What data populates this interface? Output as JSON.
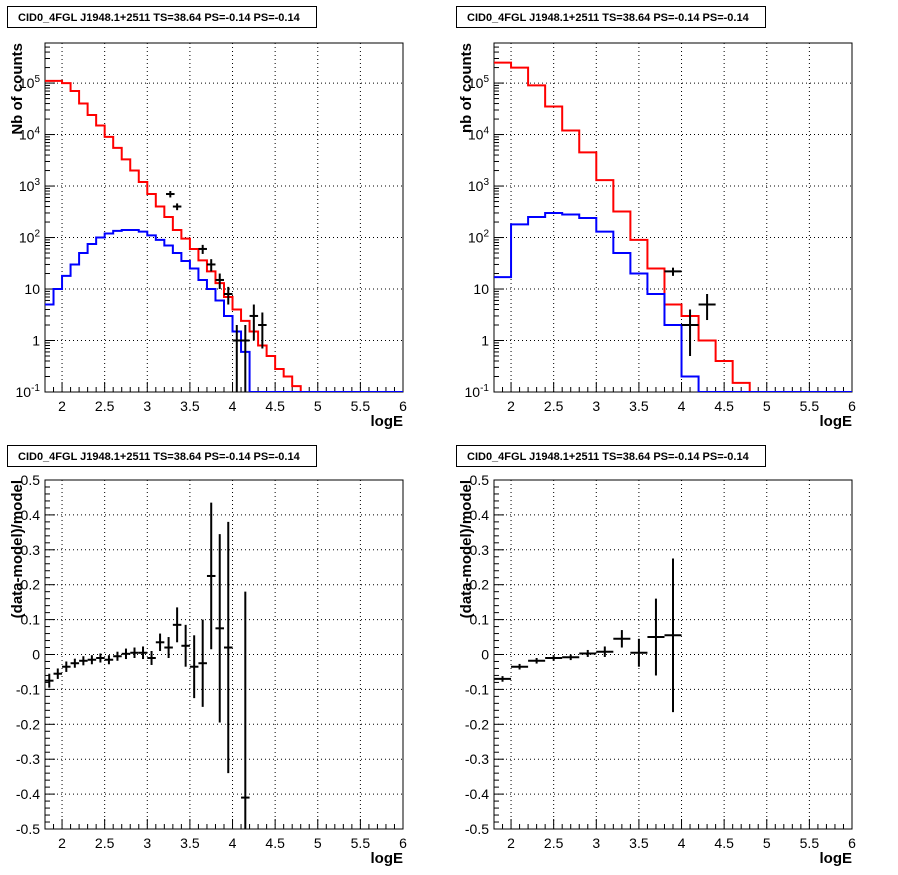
{
  "chart_data": [
    {
      "type": "histogram",
      "title": "CID0_4FGL J1948.1+2511 TS=38.64 PS=-0.14 PS=-0.14",
      "xlabel": "logE",
      "ylabel": "Nb of counts",
      "yscale": "log",
      "xlim": [
        1.8,
        6.0
      ],
      "ylim": [
        0.1,
        600000
      ],
      "grid": true,
      "xticks": [
        "2",
        "2.5",
        "3",
        "3.5",
        "4",
        "4.5",
        "5",
        "5.5",
        "6"
      ],
      "yticks": [
        "10^-1",
        "1",
        "10",
        "10^2",
        "10^3",
        "10^4",
        "10^5"
      ],
      "bin_edges": [
        1.8,
        1.9,
        2.0,
        2.1,
        2.2,
        2.3,
        2.4,
        2.5,
        2.6,
        2.7,
        2.8,
        2.9,
        3.0,
        3.1,
        3.2,
        3.3,
        3.4,
        3.5,
        3.6,
        3.7,
        3.8,
        3.9,
        4.0,
        4.1,
        4.2,
        4.3,
        4.4,
        4.5,
        4.6,
        4.7,
        4.8,
        4.9,
        5.0,
        5.1,
        5.2,
        5.3,
        5.4,
        5.5,
        5.6,
        5.7,
        5.8,
        5.9,
        6.0
      ],
      "series": [
        {
          "name": "",
          "color": "#ff0000",
          "values": [
            110000,
            110000,
            100000,
            70000,
            40000,
            24000,
            15000,
            9000,
            5500,
            3300,
            2000,
            1200,
            700,
            400,
            250,
            140,
            95,
            60,
            36,
            22,
            13,
            7,
            4,
            2.4,
            1.5,
            0.8,
            0.5,
            0.28,
            0.2,
            0.13,
            0.1,
            0.1,
            0.1,
            0.1,
            0.1,
            0.1,
            0.1,
            0.1,
            0.1,
            0.1,
            0.1,
            0.1
          ]
        },
        {
          "name": "",
          "color": "#0000ff",
          "values": [
            5,
            10,
            18,
            30,
            50,
            75,
            100,
            120,
            135,
            140,
            140,
            130,
            110,
            90,
            70,
            50,
            35,
            25,
            15,
            10,
            6,
            3,
            1.5,
            0.6,
            0.1,
            0.1,
            0.1,
            0.1,
            0.1,
            0.1,
            0.1,
            0.1,
            0.1,
            0.1,
            0.1,
            0.1,
            0.1,
            0.1,
            0.1,
            0.1,
            0.1,
            0.1
          ]
        }
      ],
      "data_points": [
        {
          "x": 3.27,
          "y": 700,
          "ylo": 600,
          "yhi": 800
        },
        {
          "x": 3.35,
          "y": 400,
          "ylo": 340,
          "yhi": 460
        },
        {
          "x": 3.65,
          "y": 60,
          "ylo": 48,
          "yhi": 72
        },
        {
          "x": 3.75,
          "y": 30,
          "ylo": 22,
          "yhi": 38
        },
        {
          "x": 3.85,
          "y": 15,
          "ylo": 10,
          "yhi": 20
        },
        {
          "x": 3.95,
          "y": 8,
          "ylo": 5,
          "yhi": 11
        },
        {
          "x": 4.05,
          "y": 1,
          "ylo": 0.1,
          "yhi": 2
        },
        {
          "x": 4.15,
          "y": 1,
          "ylo": 0.1,
          "yhi": 2
        },
        {
          "x": 4.25,
          "y": 3,
          "ylo": 1,
          "yhi": 5
        },
        {
          "x": 4.35,
          "y": 2,
          "ylo": 0.7,
          "yhi": 3.5
        }
      ]
    },
    {
      "type": "histogram",
      "title": "CID0_4FGL J1948.1+2511 TS=38.64 PS=-0.14 PS=-0.14",
      "xlabel": "logE",
      "ylabel": "nb of counts",
      "yscale": "log",
      "xlim": [
        1.8,
        6.0
      ],
      "ylim": [
        0.1,
        600000
      ],
      "grid": true,
      "xticks": [
        "2",
        "2.5",
        "3",
        "3.5",
        "4",
        "4.5",
        "5",
        "5.5",
        "6"
      ],
      "yticks": [
        "10^-1",
        "1",
        "10",
        "10^2",
        "10^3",
        "10^4",
        "10^5"
      ],
      "bin_edges": [
        1.8,
        2.0,
        2.2,
        2.4,
        2.6,
        2.8,
        3.0,
        3.2,
        3.4,
        3.6,
        3.8,
        4.0,
        4.2,
        4.4,
        4.6,
        4.8,
        5.0,
        5.2,
        5.4,
        5.6,
        5.8,
        6.0
      ],
      "series": [
        {
          "name": "",
          "color": "#ff0000",
          "values": [
            250000,
            200000,
            90000,
            35000,
            12000,
            4500,
            1300,
            320,
            90,
            25,
            5,
            3,
            1,
            0.4,
            0.15,
            0.1,
            0.1,
            0.1,
            0.1,
            0.1,
            0.1
          ]
        },
        {
          "name": "",
          "color": "#0000ff",
          "values": [
            17,
            180,
            250,
            300,
            280,
            240,
            130,
            50,
            20,
            8,
            2,
            0.2,
            0.1,
            0.1,
            0.1,
            0.1,
            0.1,
            0.1,
            0.1,
            0.1,
            0.1
          ]
        }
      ],
      "data_points": [
        {
          "x": 3.9,
          "y": 22,
          "ylo": 18,
          "yhi": 26
        },
        {
          "x": 4.1,
          "y": 2,
          "ylo": 0.5,
          "yhi": 4
        },
        {
          "x": 4.3,
          "y": 5,
          "ylo": 2.5,
          "yhi": 8
        }
      ]
    },
    {
      "type": "scatter",
      "title": "CID0_4FGL J1948.1+2511 TS=38.64 PS=-0.14 PS=-0.14",
      "xlabel": "logE",
      "ylabel": "(data-model)/model",
      "xlim": [
        1.8,
        6.0
      ],
      "ylim": [
        -0.5,
        0.5
      ],
      "grid": true,
      "xticks": [
        "2",
        "2.5",
        "3",
        "3.5",
        "4",
        "4.5",
        "5",
        "5.5",
        "6"
      ],
      "yticks": [
        "-0.5",
        "-0.4",
        "-0.3",
        "-0.2",
        "-0.1",
        "0",
        "0.1",
        "0.2",
        "0.3",
        "0.4",
        "0.5"
      ],
      "xerr": 0.05,
      "points": [
        {
          "x": 1.85,
          "y": -0.075,
          "err": 0.02
        },
        {
          "x": 1.95,
          "y": -0.055,
          "err": 0.015
        },
        {
          "x": 2.05,
          "y": -0.035,
          "err": 0.015
        },
        {
          "x": 2.15,
          "y": -0.025,
          "err": 0.013
        },
        {
          "x": 2.25,
          "y": -0.018,
          "err": 0.013
        },
        {
          "x": 2.35,
          "y": -0.015,
          "err": 0.013
        },
        {
          "x": 2.45,
          "y": -0.01,
          "err": 0.013
        },
        {
          "x": 2.55,
          "y": -0.015,
          "err": 0.013
        },
        {
          "x": 2.65,
          "y": -0.005,
          "err": 0.013
        },
        {
          "x": 2.75,
          "y": 0.002,
          "err": 0.015
        },
        {
          "x": 2.85,
          "y": 0.005,
          "err": 0.015
        },
        {
          "x": 2.95,
          "y": 0.005,
          "err": 0.018
        },
        {
          "x": 3.05,
          "y": -0.01,
          "err": 0.02
        },
        {
          "x": 3.15,
          "y": 0.035,
          "err": 0.025
        },
        {
          "x": 3.25,
          "y": 0.02,
          "err": 0.03
        },
        {
          "x": 3.35,
          "y": 0.085,
          "err": 0.05
        },
        {
          "x": 3.45,
          "y": 0.025,
          "err": 0.06
        },
        {
          "x": 3.55,
          "y": -0.035,
          "err": 0.09
        },
        {
          "x": 3.65,
          "y": -0.025,
          "err": 0.125
        },
        {
          "x": 3.75,
          "y": 0.225,
          "err": 0.21
        },
        {
          "x": 3.85,
          "y": 0.075,
          "err": 0.27
        },
        {
          "x": 3.95,
          "y": 0.02,
          "err": 0.36
        },
        {
          "x": 4.15,
          "y": -0.41,
          "err": 0.59
        }
      ]
    },
    {
      "type": "scatter",
      "title": "CID0_4FGL J1948.1+2511 TS=38.64 PS=-0.14 PS=-0.14",
      "xlabel": "logE",
      "ylabel": "(data-model)/model",
      "xlim": [
        1.8,
        6.0
      ],
      "ylim": [
        -0.5,
        0.5
      ],
      "grid": true,
      "xticks": [
        "2",
        "2.5",
        "3",
        "3.5",
        "4",
        "4.5",
        "5",
        "5.5",
        "6"
      ],
      "yticks": [
        "-0.5",
        "-0.4",
        "-0.3",
        "-0.2",
        "-0.1",
        "0",
        "0.1",
        "0.2",
        "0.3",
        "0.4",
        "0.5"
      ],
      "xerr": 0.1,
      "points": [
        {
          "x": 1.9,
          "y": -0.07,
          "err": 0.008
        },
        {
          "x": 2.1,
          "y": -0.035,
          "err": 0.008
        },
        {
          "x": 2.3,
          "y": -0.018,
          "err": 0.008
        },
        {
          "x": 2.5,
          "y": -0.01,
          "err": 0.008
        },
        {
          "x": 2.7,
          "y": -0.008,
          "err": 0.008
        },
        {
          "x": 2.9,
          "y": 0.003,
          "err": 0.01
        },
        {
          "x": 3.1,
          "y": 0.008,
          "err": 0.015
        },
        {
          "x": 3.3,
          "y": 0.045,
          "err": 0.025
        },
        {
          "x": 3.5,
          "y": 0.005,
          "err": 0.04
        },
        {
          "x": 3.7,
          "y": 0.05,
          "err": 0.11
        },
        {
          "x": 3.9,
          "y": 0.055,
          "err": 0.22
        }
      ]
    }
  ]
}
